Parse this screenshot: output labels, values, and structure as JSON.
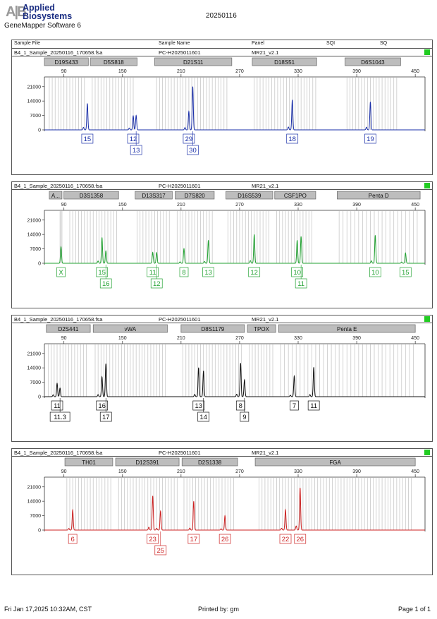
{
  "brand": {
    "mark": "A|B",
    "line1": "Applied",
    "line2": "Biosystems"
  },
  "software": "GeneMapper Software 6",
  "report_date": "20250116",
  "header": {
    "sample_file": "Sample File",
    "sample_name": "Sample Name",
    "panel": "Panel",
    "sqi": "SQI",
    "sq": "SQ"
  },
  "footer": {
    "left": "Fri Jan 17,2025 10:32AM, CST",
    "center": "Printed by: gm",
    "right": "Page 1 of 1"
  },
  "chart_data": [
    {
      "type": "line",
      "file": "B4_1_Sample_20250116_170658.fsa",
      "sample": "PC-H2025011601",
      "panel": "MR21_v2.1",
      "color": "#1a2fa8",
      "xlim": [
        70,
        460
      ],
      "ylim": [
        0,
        24000
      ],
      "xticks": [
        90,
        150,
        210,
        270,
        330,
        390,
        450
      ],
      "yticks": [
        0,
        7000,
        14000,
        21000
      ],
      "markers": [
        {
          "label": "D19S433",
          "from": 70,
          "to": 115
        },
        {
          "label": "D5S818",
          "from": 117,
          "to": 165
        },
        {
          "label": "D21S11",
          "from": 183,
          "to": 262
        },
        {
          "label": "D18S51",
          "from": 283,
          "to": 349
        },
        {
          "label": "D6S1043",
          "from": 378,
          "to": 435
        }
      ],
      "peaks": [
        {
          "x": 114,
          "h": 12800,
          "label": "15",
          "row": 0
        },
        {
          "x": 161,
          "h": 6800,
          "label": "12",
          "row": 0
        },
        {
          "x": 164,
          "h": 7000,
          "label": "13",
          "row": 1
        },
        {
          "x": 218,
          "h": 9000,
          "label": "29",
          "row": 0
        },
        {
          "x": 222,
          "h": 21000,
          "label": "30",
          "row": 1
        },
        {
          "x": 324,
          "h": 14600,
          "label": "18",
          "row": 0
        },
        {
          "x": 404,
          "h": 13600,
          "label": "19",
          "row": 0
        }
      ],
      "minor_peaks": [
        {
          "x": 110,
          "h": 1200
        },
        {
          "x": 157,
          "h": 900
        },
        {
          "x": 214,
          "h": 1100
        },
        {
          "x": 320,
          "h": 1400
        },
        {
          "x": 400,
          "h": 1300
        }
      ],
      "bin_groups": [
        [
          75,
          113,
          3
        ],
        [
          119,
          163,
          3
        ],
        [
          185,
          258,
          3
        ],
        [
          285,
          348,
          3
        ],
        [
          380,
          432,
          3
        ]
      ]
    },
    {
      "type": "line",
      "file": "B4_1_Sample_20250116_170658.fsa",
      "sample": "PC-H2025011601",
      "panel": "MR21_v2.1",
      "color": "#22a232",
      "xlim": [
        70,
        460
      ],
      "ylim": [
        0,
        24000
      ],
      "xticks": [
        90,
        150,
        210,
        270,
        330,
        390,
        450
      ],
      "yticks": [
        0,
        7000,
        14000,
        21000
      ],
      "markers": [
        {
          "label": "A...",
          "from": 75,
          "to": 88
        },
        {
          "label": "D3S1358",
          "from": 90,
          "to": 146
        },
        {
          "label": "D13S317",
          "from": 163,
          "to": 201
        },
        {
          "label": "D7S820",
          "from": 204,
          "to": 244
        },
        {
          "label": "D16S539",
          "from": 256,
          "to": 304
        },
        {
          "label": "CSF1PO",
          "from": 306,
          "to": 348
        },
        {
          "label": "Penta D",
          "from": 370,
          "to": 455
        }
      ],
      "peaks": [
        {
          "x": 87,
          "h": 8000,
          "label": "X",
          "row": 0
        },
        {
          "x": 129,
          "h": 12500,
          "label": "15",
          "row": 0
        },
        {
          "x": 133,
          "h": 6000,
          "label": "16",
          "row": 1
        },
        {
          "x": 181,
          "h": 5300,
          "label": "11",
          "row": 0
        },
        {
          "x": 185,
          "h": 5200,
          "label": "12",
          "row": 1
        },
        {
          "x": 213,
          "h": 7100,
          "label": "8",
          "row": 0
        },
        {
          "x": 238,
          "h": 11200,
          "label": "13",
          "row": 0
        },
        {
          "x": 285,
          "h": 14000,
          "label": "12",
          "row": 0
        },
        {
          "x": 329,
          "h": 11200,
          "label": "10",
          "row": 0
        },
        {
          "x": 333,
          "h": 13000,
          "label": "11",
          "row": 1
        },
        {
          "x": 409,
          "h": 13600,
          "label": "10",
          "row": 0
        },
        {
          "x": 440,
          "h": 5000,
          "label": "15",
          "row": 0
        }
      ],
      "minor_peaks": [
        {
          "x": 125,
          "h": 1100
        },
        {
          "x": 209,
          "h": 700
        },
        {
          "x": 234,
          "h": 900
        },
        {
          "x": 281,
          "h": 1300
        },
        {
          "x": 405,
          "h": 1200
        },
        {
          "x": 436,
          "h": 600
        }
      ],
      "bin_groups": [
        [
          86,
          88,
          1
        ],
        [
          96,
          144,
          3
        ],
        [
          165,
          199,
          3
        ],
        [
          206,
          242,
          3
        ],
        [
          258,
          302,
          3
        ],
        [
          308,
          346,
          3
        ],
        [
          372,
          452,
          4
        ]
      ]
    },
    {
      "type": "line",
      "file": "B4_1_Sample_20250116_170658.fsa",
      "sample": "PC-H2025011601",
      "panel": "MR21_v2.1",
      "color": "#111111",
      "xlim": [
        70,
        460
      ],
      "ylim": [
        0,
        24000
      ],
      "xticks": [
        90,
        150,
        210,
        270,
        330,
        390,
        450
      ],
      "yticks": [
        0,
        7000,
        14000,
        21000
      ],
      "markers": [
        {
          "label": "D2S441",
          "from": 72,
          "to": 117
        },
        {
          "label": "vWA",
          "from": 120,
          "to": 196
        },
        {
          "label": "D8S1179",
          "from": 210,
          "to": 275
        },
        {
          "label": "TPOX",
          "from": 278,
          "to": 307
        },
        {
          "label": "Penta E",
          "from": 310,
          "to": 450
        }
      ],
      "peaks": [
        {
          "x": 83,
          "h": 6500,
          "label": "11",
          "row": 0
        },
        {
          "x": 86,
          "h": 4200,
          "label": "11.3",
          "row": 1
        },
        {
          "x": 129,
          "h": 9600,
          "label": "16",
          "row": 0
        },
        {
          "x": 133,
          "h": 16000,
          "label": "17",
          "row": 1
        },
        {
          "x": 228,
          "h": 14100,
          "label": "13",
          "row": 0
        },
        {
          "x": 233,
          "h": 12500,
          "label": "14",
          "row": 1
        },
        {
          "x": 271,
          "h": 16300,
          "label": "8",
          "row": 0
        },
        {
          "x": 275,
          "h": 8200,
          "label": "9",
          "row": 1
        },
        {
          "x": 326,
          "h": 10000,
          "label": "7",
          "row": 0
        },
        {
          "x": 346,
          "h": 14300,
          "label": "11",
          "row": 0
        }
      ],
      "minor_peaks": [
        {
          "x": 79,
          "h": 900
        },
        {
          "x": 125,
          "h": 1000
        },
        {
          "x": 224,
          "h": 1100
        },
        {
          "x": 267,
          "h": 1200
        },
        {
          "x": 322,
          "h": 700
        },
        {
          "x": 342,
          "h": 1000
        }
      ],
      "bin_groups": [
        [
          74,
          115,
          3
        ],
        [
          122,
          194,
          3
        ],
        [
          212,
          273,
          3
        ],
        [
          280,
          305,
          3
        ],
        [
          312,
          448,
          4
        ]
      ]
    },
    {
      "type": "line",
      "file": "B4_1_Sample_20250116_170658.fsa",
      "sample": "PC-H2025011601",
      "panel": "MR21_v2.1",
      "color": "#cc2222",
      "xlim": [
        70,
        460
      ],
      "ylim": [
        0,
        24000
      ],
      "xticks": [
        90,
        150,
        210,
        270,
        330,
        390,
        450
      ],
      "yticks": [
        0,
        7000,
        14000,
        21000
      ],
      "markers": [
        {
          "label": "TH01",
          "from": 91,
          "to": 140
        },
        {
          "label": "D12S391",
          "from": 143,
          "to": 208
        },
        {
          "label": "D2S1338",
          "from": 211,
          "to": 268
        },
        {
          "label": "FGA",
          "from": 286,
          "to": 450
        }
      ],
      "peaks": [
        {
          "x": 99,
          "h": 9800,
          "label": "6",
          "row": 0
        },
        {
          "x": 181,
          "h": 16600,
          "label": "23",
          "row": 0
        },
        {
          "x": 189,
          "h": 9200,
          "label": "25",
          "row": 1
        },
        {
          "x": 223,
          "h": 14000,
          "label": "17",
          "row": 0
        },
        {
          "x": 255,
          "h": 7000,
          "label": "26",
          "row": 0
        },
        {
          "x": 317,
          "h": 9900,
          "label": "22",
          "row": 0
        },
        {
          "x": 332,
          "h": 20500,
          "label": "26",
          "row": 0
        }
      ],
      "minor_peaks": [
        {
          "x": 95,
          "h": 800
        },
        {
          "x": 177,
          "h": 1400
        },
        {
          "x": 185,
          "h": 900
        },
        {
          "x": 219,
          "h": 1000
        },
        {
          "x": 251,
          "h": 600
        },
        {
          "x": 313,
          "h": 900
        },
        {
          "x": 328,
          "h": 2000
        }
      ],
      "bin_groups": [
        [
          93,
          138,
          3
        ],
        [
          146,
          206,
          3
        ],
        [
          213,
          266,
          3
        ],
        [
          290,
          448,
          3
        ]
      ]
    }
  ]
}
